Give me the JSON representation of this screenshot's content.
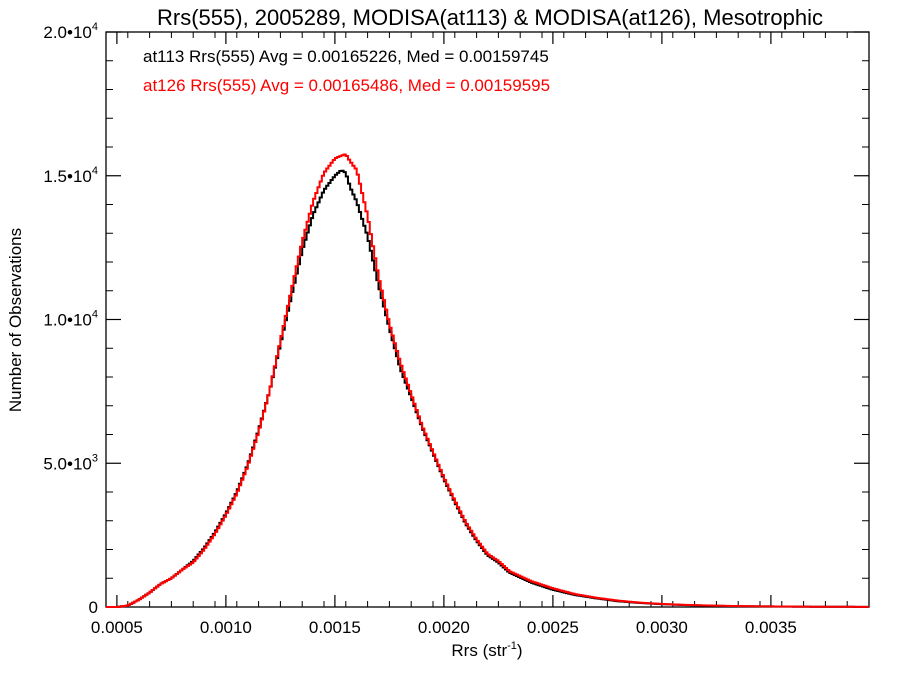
{
  "chart_data": {
    "type": "line",
    "title": "Rrs(555), 2005289, MODISA(at113) & MODISA(at126), Mesotrophic",
    "xlabel_main": "Rrs (str",
    "xlabel_sup": "-1",
    "xlabel_end": ")",
    "ylabel": "Number of Observations",
    "xlim": [
      0.00045,
      0.00395
    ],
    "ylim": [
      0,
      20000
    ],
    "x_ticks": [
      {
        "value": 0.0005,
        "label": "0.0005"
      },
      {
        "value": 0.001,
        "label": "0.0010"
      },
      {
        "value": 0.0015,
        "label": "0.0015"
      },
      {
        "value": 0.002,
        "label": "0.0020"
      },
      {
        "value": 0.0025,
        "label": "0.0025"
      },
      {
        "value": 0.003,
        "label": "0.0030"
      },
      {
        "value": 0.0035,
        "label": "0.0035"
      }
    ],
    "y_ticks": [
      {
        "value": 0,
        "label": "0",
        "sup": ""
      },
      {
        "value": 5000,
        "label": "5.0•10",
        "sup": "3"
      },
      {
        "value": 10000,
        "label": "1.0•10",
        "sup": "4"
      },
      {
        "value": 15000,
        "label": "1.5•10",
        "sup": "4"
      },
      {
        "value": 20000,
        "label": "2.0•10",
        "sup": "4"
      }
    ],
    "grid": false,
    "series": [
      {
        "name": "at113",
        "color": "#000000",
        "annotation": "at113 Rrs(555) Avg = 0.00165226, Med = 0.00159745",
        "x": [
          0.00045,
          0.0005,
          0.00055,
          0.0006,
          0.00065,
          0.0007,
          0.00075,
          0.0008,
          0.00085,
          0.0009,
          0.00095,
          0.001,
          0.00105,
          0.0011,
          0.00115,
          0.0012,
          0.00125,
          0.0013,
          0.00135,
          0.0014,
          0.00145,
          0.0015,
          0.00153,
          0.00155,
          0.00157,
          0.0016,
          0.00165,
          0.0017,
          0.00175,
          0.0018,
          0.00185,
          0.0019,
          0.00195,
          0.002,
          0.00205,
          0.0021,
          0.00215,
          0.0022,
          0.00225,
          0.0023,
          0.0024,
          0.0025,
          0.0026,
          0.0027,
          0.0028,
          0.0029,
          0.003,
          0.0031,
          0.0032,
          0.0033,
          0.0034,
          0.0035,
          0.0036,
          0.0037,
          0.0038,
          0.00395
        ],
        "y": [
          0,
          0,
          50,
          250,
          500,
          800,
          1000,
          1300,
          1600,
          2050,
          2600,
          3250,
          4000,
          4950,
          6150,
          7500,
          9150,
          10800,
          12400,
          13650,
          14500,
          15000,
          15200,
          15100,
          14600,
          14100,
          12900,
          11200,
          9700,
          8300,
          7300,
          6250,
          5350,
          4450,
          3650,
          2900,
          2300,
          1800,
          1550,
          1200,
          850,
          600,
          420,
          300,
          200,
          140,
          100,
          70,
          50,
          35,
          25,
          20,
          15,
          10,
          8,
          5
        ]
      },
      {
        "name": "at126",
        "color": "#ff0000",
        "annotation": "at126 Rrs(555) Avg = 0.00165486, Med = 0.00159595",
        "x": [
          0.00045,
          0.0005,
          0.00055,
          0.0006,
          0.00065,
          0.0007,
          0.00075,
          0.0008,
          0.00085,
          0.0009,
          0.00095,
          0.001,
          0.00105,
          0.0011,
          0.00115,
          0.0012,
          0.00125,
          0.0013,
          0.00135,
          0.0014,
          0.00145,
          0.0015,
          0.00153,
          0.00155,
          0.00157,
          0.0016,
          0.00165,
          0.0017,
          0.00175,
          0.0018,
          0.00185,
          0.0019,
          0.00195,
          0.002,
          0.00205,
          0.0021,
          0.00215,
          0.0022,
          0.00225,
          0.0023,
          0.0024,
          0.0025,
          0.0026,
          0.0027,
          0.0028,
          0.0029,
          0.003,
          0.0031,
          0.0032,
          0.0033,
          0.0034,
          0.0035,
          0.0036,
          0.0037,
          0.0038,
          0.00395
        ],
        "y": [
          0,
          0,
          50,
          250,
          500,
          800,
          1000,
          1300,
          1550,
          2000,
          2550,
          3200,
          3950,
          4900,
          6100,
          7500,
          9250,
          11000,
          12700,
          14100,
          15100,
          15600,
          15700,
          15750,
          15500,
          15200,
          13600,
          11500,
          9850,
          8500,
          7400,
          6300,
          5400,
          4500,
          3700,
          2950,
          2350,
          1850,
          1600,
          1250,
          900,
          650,
          450,
          320,
          220,
          150,
          105,
          75,
          55,
          38,
          28,
          20,
          15,
          10,
          8,
          5
        ]
      }
    ]
  }
}
